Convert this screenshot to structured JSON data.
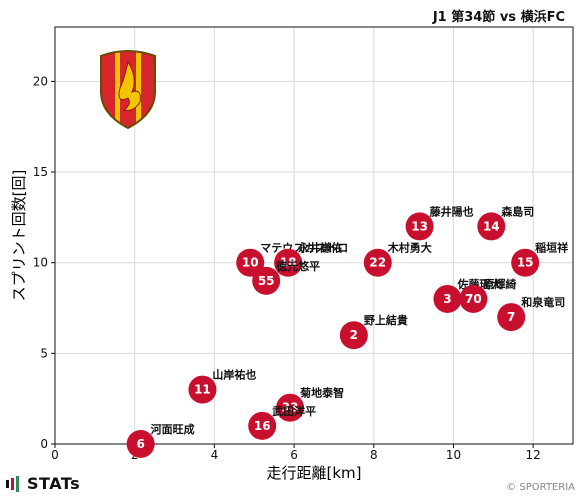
{
  "header": {
    "title": "J1 第34節 vs 横浜FC"
  },
  "footer": {
    "brand": "STATs",
    "copyright": "© SPORTERIA"
  },
  "colors": {
    "point": "#c8102e",
    "grid": "#d9d9d9",
    "axis": "#111111"
  },
  "team_emblem": {
    "icon": "shield-emblem-icon"
  },
  "chart_data": {
    "type": "scatter",
    "xlabel": "走行距離[km]",
    "ylabel": "スプリント回数[回]",
    "xlim": [
      0,
      13
    ],
    "ylim": [
      0,
      23
    ],
    "xticks": [
      0,
      2,
      4,
      6,
      8,
      10,
      12
    ],
    "yticks": [
      0,
      5,
      10,
      15,
      20
    ],
    "grid": true,
    "points": [
      {
        "number": "13",
        "name": "藤井陽也",
        "x": 9.15,
        "y": 12
      },
      {
        "number": "14",
        "name": "森島司",
        "x": 10.95,
        "y": 12
      },
      {
        "number": "10",
        "name": "マテウスカストロ",
        "x": 4.9,
        "y": 10
      },
      {
        "number": "18",
        "name": "永井謙佑",
        "x": 5.85,
        "y": 10
      },
      {
        "number": "22",
        "name": "木村勇大",
        "x": 8.1,
        "y": 10
      },
      {
        "number": "15",
        "name": "稲垣祥",
        "x": 11.8,
        "y": 10
      },
      {
        "number": "55",
        "name": "徳元悠平",
        "x": 5.3,
        "y": 9
      },
      {
        "number": "3",
        "name": "佐藤瑶大",
        "x": 9.85,
        "y": 8
      },
      {
        "number": "70",
        "name": "原輝綺",
        "x": 10.5,
        "y": 8
      },
      {
        "number": "7",
        "name": "和泉竜司",
        "x": 11.45,
        "y": 7
      },
      {
        "number": "2",
        "name": "野上結貴",
        "x": 7.5,
        "y": 6
      },
      {
        "number": "11",
        "name": "山岸祐也",
        "x": 3.7,
        "y": 3
      },
      {
        "number": "33",
        "name": "菊地泰智",
        "x": 5.9,
        "y": 2
      },
      {
        "number": "16",
        "name": "武田洋平",
        "x": 5.2,
        "y": 1
      },
      {
        "number": "6",
        "name": "河面旺成",
        "x": 2.15,
        "y": 0
      }
    ]
  }
}
